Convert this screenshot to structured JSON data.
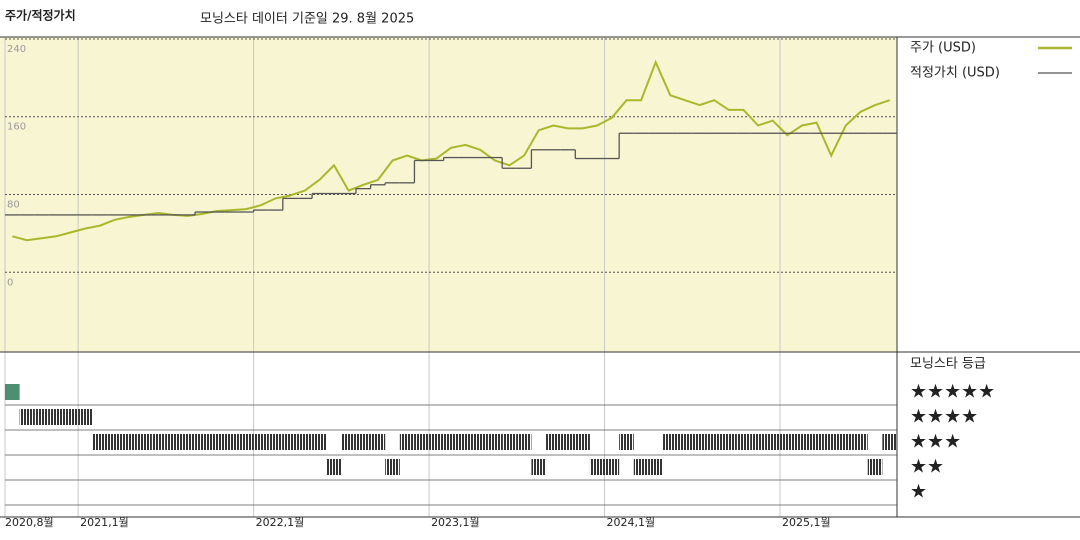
{
  "header": {
    "title": "주가/적정가치",
    "subtitle": "모닝스타 데이터 기준일 29. 8월 2025"
  },
  "chart_data": [
    {
      "type": "line",
      "x": [
        "2020-08",
        "2020-09",
        "2020-10",
        "2020-11",
        "2020-12",
        "2021-01",
        "2021-02",
        "2021-03",
        "2021-04",
        "2021-05",
        "2021-06",
        "2021-07",
        "2021-08",
        "2021-09",
        "2021-10",
        "2021-11",
        "2021-12",
        "2022-01",
        "2022-02",
        "2022-03",
        "2022-04",
        "2022-05",
        "2022-06",
        "2022-07",
        "2022-08",
        "2022-09",
        "2022-10",
        "2022-11",
        "2022-12",
        "2023-01",
        "2023-02",
        "2023-03",
        "2023-04",
        "2023-05",
        "2023-06",
        "2023-07",
        "2023-08",
        "2023-09",
        "2023-10",
        "2023-11",
        "2023-12",
        "2024-01",
        "2024-02",
        "2024-03",
        "2024-04",
        "2024-05",
        "2024-06",
        "2024-07",
        "2024-08",
        "2024-09",
        "2024-10",
        "2024-11",
        "2024-12",
        "2025-01",
        "2025-02",
        "2025-03",
        "2025-04",
        "2025-05",
        "2025-06",
        "2025-07",
        "2025-08"
      ],
      "series": [
        {
          "name": "주가 (USD)",
          "color": "#a9b82b",
          "values": [
            37,
            33,
            35,
            37,
            41,
            45,
            48,
            54,
            57,
            59,
            61,
            59,
            58,
            60,
            63,
            64,
            65,
            69,
            76,
            79,
            84,
            95,
            110,
            84,
            90,
            95,
            115,
            120,
            115,
            117,
            128,
            131,
            126,
            115,
            110,
            120,
            146,
            151,
            148,
            148,
            151,
            159,
            177,
            177,
            216,
            182,
            177,
            172,
            177,
            167,
            167,
            151,
            156,
            141,
            151,
            154,
            120,
            151,
            165,
            172,
            177
          ]
        },
        {
          "name": "적정가치 (USD)",
          "color": "#555555",
          "step": true,
          "values": [
            59,
            59,
            59,
            59,
            59,
            59,
            59,
            59,
            59,
            59,
            59,
            59,
            59,
            62,
            62,
            62,
            62,
            64,
            64,
            76,
            76,
            81,
            81,
            81,
            86,
            90,
            92,
            92,
            115,
            115,
            118,
            118,
            118,
            118,
            107,
            107,
            126,
            126,
            126,
            117,
            117,
            117,
            143,
            143,
            143,
            143,
            143,
            143,
            143,
            143,
            143,
            143,
            143,
            143,
            143,
            143,
            143,
            143,
            143,
            143,
            143
          ]
        }
      ],
      "xlim": [
        "2020-08",
        "2025-09"
      ],
      "xticks": [
        {
          "value": "2020-08",
          "label": "2020,8월"
        },
        {
          "value": "2021-01",
          "label": "2021,1월"
        },
        {
          "value": "2022-01",
          "label": "2022,1월"
        },
        {
          "value": "2023-01",
          "label": "2023,1월"
        },
        {
          "value": "2024-01",
          "label": "2024,1월"
        },
        {
          "value": "2025-01",
          "label": "2025,1월"
        }
      ],
      "ylim": [
        -82,
        242
      ],
      "yticks": [
        0,
        80,
        160,
        240
      ],
      "grid": true,
      "background": "#f8f5d3"
    },
    {
      "type": "rating",
      "title": "모닝스타 등급",
      "values": [
        5,
        4,
        4,
        4,
        4,
        4,
        3,
        3,
        3,
        3,
        3,
        3,
        3,
        3,
        3,
        3,
        3,
        3,
        3,
        3,
        3,
        3,
        2,
        3,
        3,
        3,
        2,
        3,
        3,
        3,
        3,
        3,
        3,
        3,
        3,
        3,
        2,
        3,
        3,
        3,
        2,
        2,
        3,
        2,
        2,
        3,
        3,
        3,
        3,
        3,
        3,
        3,
        3,
        3,
        3,
        3,
        3,
        3,
        3,
        2,
        3
      ],
      "ylim": [
        0,
        6.6
      ],
      "yticks": [
        {
          "value": 5,
          "label": "★★★★★"
        },
        {
          "value": 4,
          "label": "★★★★"
        },
        {
          "value": 3,
          "label": "★★★"
        },
        {
          "value": 2,
          "label": "★★"
        },
        {
          "value": 1,
          "label": "★"
        }
      ],
      "color": "#333333",
      "top_color": "#4e8f74"
    }
  ]
}
